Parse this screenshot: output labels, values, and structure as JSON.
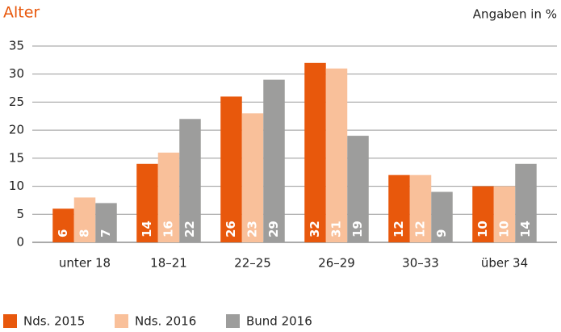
{
  "chart_data": {
    "type": "bar",
    "title": "Alter",
    "subtitle": "Angaben in %",
    "categories": [
      "unter 18",
      "18–21",
      "22–25",
      "26–29",
      "30–33",
      "über 34"
    ],
    "series": [
      {
        "name": "Nds. 2015",
        "color": "#e8580c",
        "values": [
          6,
          14,
          26,
          32,
          12,
          10
        ]
      },
      {
        "name": "Nds. 2016",
        "color": "#f9c09a",
        "values": [
          8,
          16,
          23,
          31,
          12,
          10
        ]
      },
      {
        "name": "Bund 2016",
        "color": "#9d9d9c",
        "values": [
          7,
          22,
          29,
          19,
          9,
          14
        ]
      }
    ],
    "ylim": [
      0,
      35
    ],
    "yticks": [
      0,
      5,
      10,
      15,
      20,
      25,
      30,
      35
    ],
    "grid": true,
    "legend": "bottom"
  }
}
